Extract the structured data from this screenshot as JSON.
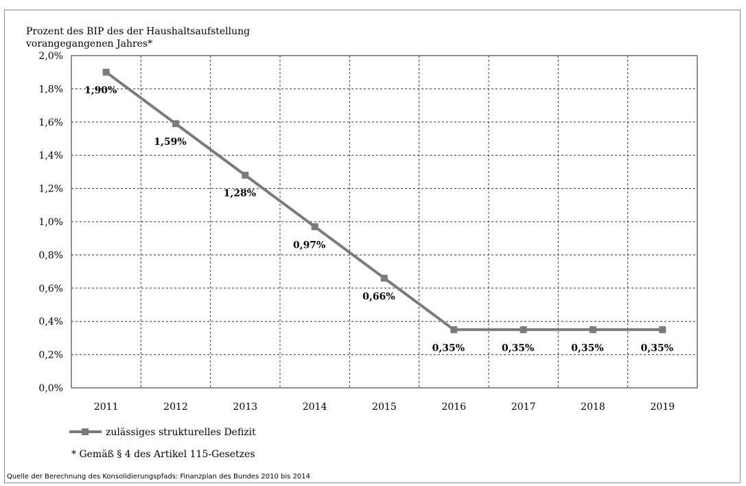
{
  "chart_data": {
    "type": "line",
    "ylabel": [
      "Prozent des BIP des der Haushaltsaufstellung",
      "vorangegangenen Jahres*"
    ],
    "xlabel": "",
    "categories": [
      "2011",
      "2012",
      "2013",
      "2014",
      "2015",
      "2016",
      "2017",
      "2018",
      "2019"
    ],
    "series": [
      {
        "name": "zulässiges strukturelles Defizit",
        "values": [
          1.9,
          1.59,
          1.28,
          0.97,
          0.66,
          0.35,
          0.35,
          0.35,
          0.35
        ],
        "labels": [
          "1,90%",
          "1,59%",
          "1,28%",
          "0,97%",
          "0,66%",
          "0,35%",
          "0,35%",
          "0,35%",
          "0,35%"
        ],
        "color": "#7a7a7a"
      }
    ],
    "ylim": [
      0,
      2.0
    ],
    "yticks": [
      "0,0%",
      "0,2%",
      "0,4%",
      "0,6%",
      "0,8%",
      "1,0%",
      "1,2%",
      "1,4%",
      "1,6%",
      "1,8%",
      "2,0%"
    ],
    "grid": true,
    "legend": "bottom-left",
    "footnote": "* Gemäß § 4 des Artikel 115-Gesetzes",
    "source": "Quelle der Berechnung des Konsolidierungspfads: Finanzplan des Bundes 2010 bis 2014"
  }
}
